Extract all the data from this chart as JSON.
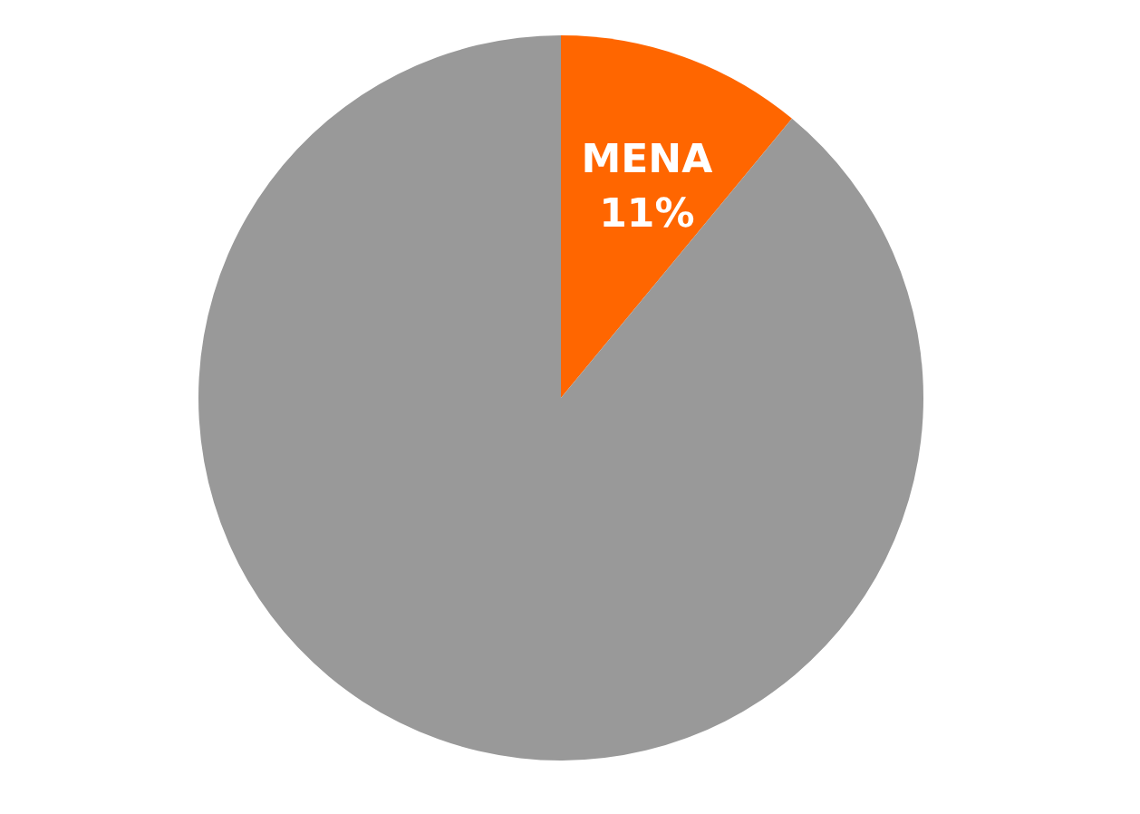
{
  "chart_data": {
    "type": "pie",
    "categories": [
      "MENA",
      null
    ],
    "values": [
      11,
      89
    ],
    "colors": [
      "#ff6600",
      "#999999"
    ],
    "value_labels": [
      "11%",
      null
    ]
  }
}
